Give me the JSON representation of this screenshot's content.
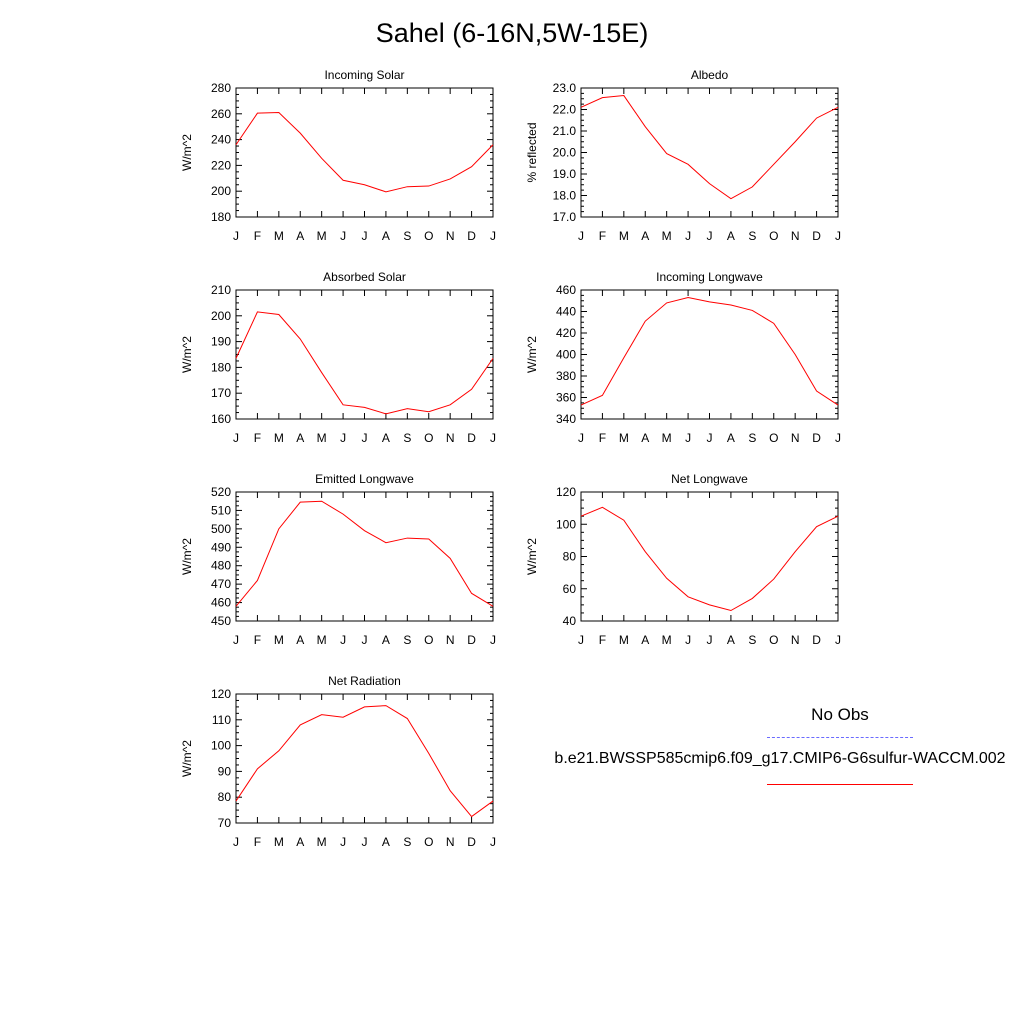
{
  "title": "Sahel (6-16N,5W-15E)",
  "legend": {
    "obs_label": "No Obs",
    "model_label": "b.e21.BWSSP585cmip6.f09_g17.CMIP6-G6sulfur-WACCM.002",
    "obs_color": "#6a6aff",
    "model_color": "#ff0000"
  },
  "chart_data": [
    {
      "type": "line",
      "title": "Incoming Solar",
      "ylabel": "W/m^2",
      "x": [
        "J",
        "F",
        "M",
        "A",
        "M",
        "J",
        "J",
        "A",
        "S",
        "O",
        "N",
        "D",
        "J"
      ],
      "ylim": [
        180,
        280
      ],
      "yticks": [
        "180",
        "200",
        "220",
        "240",
        "260",
        "280"
      ],
      "series": [
        {
          "values": [
            236,
            260.5,
            261,
            245,
            225.5,
            208.5,
            205,
            199.5,
            203.5,
            204,
            209.5,
            219,
            236
          ]
        }
      ]
    },
    {
      "type": "line",
      "title": "Albedo",
      "ylabel": "% reflected",
      "x": [
        "J",
        "F",
        "M",
        "A",
        "M",
        "J",
        "J",
        "A",
        "S",
        "O",
        "N",
        "D",
        "J"
      ],
      "ylim": [
        17.0,
        23.0
      ],
      "yticks": [
        "17.0",
        "18.0",
        "19.0",
        "20.0",
        "21.0",
        "22.0",
        "23.0"
      ],
      "series": [
        {
          "values": [
            22.1,
            22.55,
            22.65,
            21.2,
            19.95,
            19.45,
            18.55,
            17.85,
            18.4,
            19.45,
            20.5,
            21.6,
            22.1
          ]
        }
      ]
    },
    {
      "type": "line",
      "title": "Absorbed Solar",
      "ylabel": "W/m^2",
      "x": [
        "J",
        "F",
        "M",
        "A",
        "M",
        "J",
        "J",
        "A",
        "S",
        "O",
        "N",
        "D",
        "J"
      ],
      "ylim": [
        160,
        210
      ],
      "yticks": [
        "160",
        "170",
        "180",
        "190",
        "200",
        "210"
      ],
      "series": [
        {
          "values": [
            183.5,
            201.5,
            200.5,
            191,
            178,
            165.5,
            164.5,
            162,
            164,
            162.8,
            165.5,
            171.5,
            183.5
          ]
        }
      ]
    },
    {
      "type": "line",
      "title": "Incoming Longwave",
      "ylabel": "W/m^2",
      "x": [
        "J",
        "F",
        "M",
        "A",
        "M",
        "J",
        "J",
        "A",
        "S",
        "O",
        "N",
        "D",
        "J"
      ],
      "ylim": [
        340,
        460
      ],
      "yticks": [
        "340",
        "360",
        "380",
        "400",
        "420",
        "440",
        "460"
      ],
      "series": [
        {
          "values": [
            353,
            362,
            397,
            431,
            448,
            453,
            449,
            446,
            441,
            429,
            400,
            366,
            353
          ]
        }
      ]
    },
    {
      "type": "line",
      "title": "Emitted Longwave",
      "ylabel": "W/m^2",
      "x": [
        "J",
        "F",
        "M",
        "A",
        "M",
        "J",
        "J",
        "A",
        "S",
        "O",
        "N",
        "D",
        "J"
      ],
      "ylim": [
        450,
        520
      ],
      "yticks": [
        "450",
        "460",
        "470",
        "480",
        "490",
        "500",
        "510",
        "520"
      ],
      "series": [
        {
          "values": [
            458,
            472,
            500,
            514.5,
            515,
            508,
            499,
            492.5,
            495,
            494.5,
            484,
            465,
            458
          ]
        }
      ]
    },
    {
      "type": "line",
      "title": "Net Longwave",
      "ylabel": "W/m^2",
      "x": [
        "J",
        "F",
        "M",
        "A",
        "M",
        "J",
        "J",
        "A",
        "S",
        "O",
        "N",
        "D",
        "J"
      ],
      "ylim": [
        40,
        120
      ],
      "yticks": [
        "40",
        "60",
        "80",
        "100",
        "120"
      ],
      "series": [
        {
          "values": [
            105,
            110.5,
            102.5,
            83,
            66.5,
            55,
            50,
            46.5,
            54,
            66,
            83,
            98.5,
            105
          ]
        }
      ]
    },
    {
      "type": "line",
      "title": "Net Radiation",
      "ylabel": "W/m^2",
      "x": [
        "J",
        "F",
        "M",
        "A",
        "M",
        "J",
        "J",
        "A",
        "S",
        "O",
        "N",
        "D",
        "J"
      ],
      "ylim": [
        70,
        120
      ],
      "yticks": [
        "70",
        "80",
        "90",
        "100",
        "110",
        "120"
      ],
      "series": [
        {
          "values": [
            78.5,
            91,
            98,
            108,
            112,
            111,
            115,
            115.5,
            110.5,
            97,
            82.5,
            72.5,
            78.5
          ]
        }
      ]
    }
  ]
}
